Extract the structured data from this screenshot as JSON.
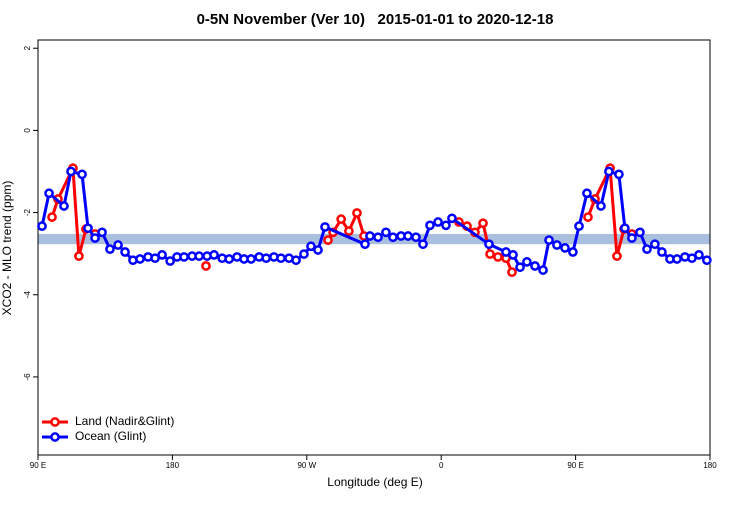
{
  "chart_data": {
    "type": "line",
    "title": "0-5N November (Ver 10)   2015-01-01 to 2020-12-18",
    "x_label": "Longitude (deg E)",
    "y_label": "XCO2 - MLO trend (ppm)",
    "xlim": [
      90,
      540
    ],
    "xticks": [
      {
        "value": 90,
        "label": "90 E"
      },
      {
        "value": 180,
        "label": "180"
      },
      {
        "value": 270,
        "label": "90 W"
      },
      {
        "value": 360,
        "label": "0"
      },
      {
        "value": 450,
        "label": "90 E"
      },
      {
        "value": 540,
        "label": "180"
      }
    ],
    "ylim": [
      -7.9,
      2.2
    ],
    "yticks": [
      2,
      0,
      -2,
      -4,
      -6
    ],
    "reference_band": {
      "ylim": [
        -2.77,
        -2.52
      ],
      "color": "#a9bfdd"
    },
    "legend": "bottom-left",
    "series": [
      {
        "name": "Land (Nadir&Glint)",
        "color": "#ff0000",
        "x": [
          99.4,
          103.4,
          113.4,
          117.4,
          122.1,
          128.2,
          null,
          202.5,
          null,
          284.2,
          287.6,
          293.0,
          298.2,
          303.6,
          308.3,
          null,
          371.9,
          377.3,
          382.6,
          388.0,
          392.7,
          398.0,
          403.4,
          407.4,
          null,
          458.3,
          463.0,
          473.1,
          477.7,
          482.4,
          487.7
        ],
        "values": [
          -2.11,
          -1.67,
          -0.92,
          -3.06,
          -2.4,
          -2.52,
          null,
          -3.3,
          null,
          -2.67,
          -2.48,
          -2.16,
          -2.45,
          -2.01,
          -2.57,
          null,
          -2.23,
          -2.33,
          -2.48,
          -2.26,
          -3.01,
          -3.08,
          -3.11,
          -3.45,
          null,
          -2.11,
          -1.67,
          -0.92,
          -3.06,
          -2.4,
          -2.52
        ]
      },
      {
        "name": "Ocean (Glint)",
        "color": "#0000ff",
        "x": [
          92.7,
          97.4,
          107.4,
          112.1,
          119.5,
          123.5,
          128.2,
          132.9,
          138.2,
          143.6,
          148.3,
          153.6,
          158.3,
          163.7,
          168.4,
          173.1,
          178.5,
          183.1,
          187.8,
          193.2,
          197.9,
          203.2,
          207.9,
          213.3,
          218.0,
          223.3,
          228.0,
          232.7,
          238.1,
          242.8,
          248.0,
          252.7,
          258.1,
          262.8,
          268.1,
          272.8,
          277.5,
          282.2,
          309.0,
          312.3,
          317.7,
          323.0,
          327.7,
          333.1,
          337.8,
          343.1,
          347.8,
          352.5,
          357.9,
          363.2,
          367.2,
          392.0,
          403.4,
          408.1,
          412.8,
          417.4,
          422.8,
          428.2,
          432.2,
          437.5,
          442.9,
          448.2,
          452.3,
          457.6,
          467.0,
          472.3,
          479.0,
          483.0,
          487.7,
          493.1,
          497.8,
          503.1,
          507.8,
          513.2,
          517.9,
          523.2,
          527.9,
          532.6,
          537.9
        ],
        "values": [
          -2.33,
          -1.53,
          -1.84,
          -1.0,
          -1.07,
          -2.38,
          -2.62,
          -2.48,
          -2.89,
          -2.79,
          -2.96,
          -3.16,
          -3.13,
          -3.08,
          -3.11,
          -3.03,
          -3.18,
          -3.08,
          -3.08,
          -3.06,
          -3.06,
          -3.06,
          -3.03,
          -3.11,
          -3.13,
          -3.08,
          -3.13,
          -3.13,
          -3.08,
          -3.11,
          -3.08,
          -3.11,
          -3.11,
          -3.16,
          -3.01,
          -2.82,
          -2.91,
          -2.35,
          -2.77,
          -2.57,
          -2.6,
          -2.48,
          -2.6,
          -2.57,
          -2.57,
          -2.6,
          -2.77,
          -2.31,
          -2.23,
          -2.31,
          -2.14,
          -2.77,
          -2.96,
          -3.03,
          -3.33,
          -3.2,
          -3.3,
          -3.4,
          -2.67,
          -2.79,
          -2.86,
          -2.96,
          -2.33,
          -1.53,
          -1.84,
          -1.0,
          -1.07,
          -2.38,
          -2.62,
          -2.48,
          -2.89,
          -2.77,
          -2.96,
          -3.13,
          -3.13,
          -3.08,
          -3.11,
          -3.03,
          -3.16
        ]
      }
    ]
  }
}
